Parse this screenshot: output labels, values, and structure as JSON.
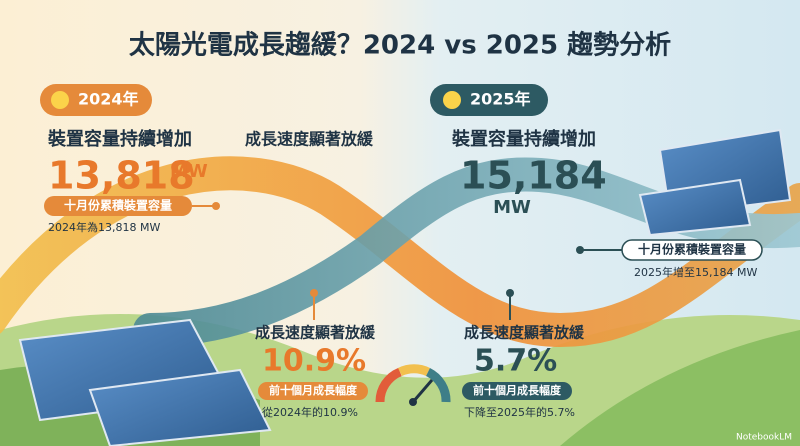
{
  "title": "太陽光電成長趨緩？2024 vs 2025 趨勢分析",
  "left": {
    "badge": "2024年",
    "heading": "裝置容量持續增加",
    "value": "13,818",
    "unit": "MW",
    "tag": "十月份累積裝置容量",
    "note": "2024年為13,818 MW"
  },
  "right": {
    "badge": "2025年",
    "heading": "裝置容量持續增加",
    "value": "15,184",
    "unit": "MW",
    "tag": "十月份累積裝置容量",
    "note": "2025年增至15,184 MW"
  },
  "middle": {
    "heading": "成長速度顯著放緩"
  },
  "growth_left": {
    "heading": "成長速度顯著放緩",
    "value": "10.9%",
    "tag": "前十個月成長幅度",
    "note": "從2024年的10.9%"
  },
  "growth_right": {
    "heading": "成長速度顯著放緩",
    "value": "5.7%",
    "tag": "前十個月成長幅度",
    "note": "下降至2025年的5.7%"
  },
  "watermark": "NotebookLM"
}
